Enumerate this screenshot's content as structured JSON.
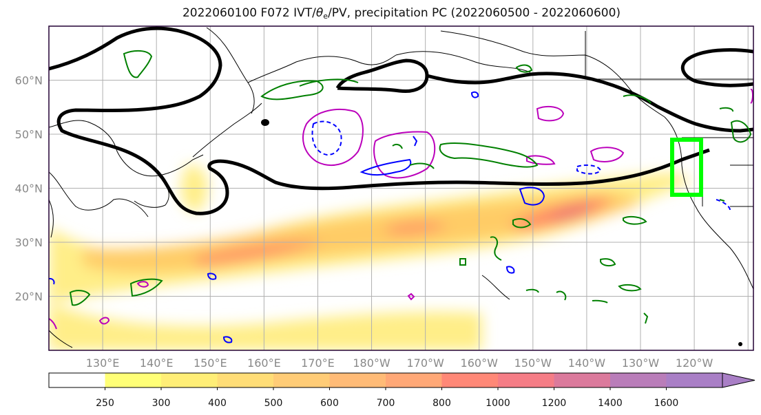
{
  "title": {
    "prefix": "2022060100 F072 IVT/",
    "theta": "θ",
    "theta_sub": "e",
    "suffix": "/PV, precipitation PC (2022060500 - 2022060600)"
  },
  "axes": {
    "lon_labels": [
      "130°E",
      "140°E",
      "150°E",
      "160°E",
      "170°E",
      "180°W",
      "170°W",
      "160°W",
      "150°W",
      "140°W",
      "130°W",
      "120°W"
    ],
    "lat_labels": [
      "60°N",
      "50°N",
      "40°N",
      "30°N",
      "20°N"
    ],
    "lon_range": [
      120,
      251
    ],
    "lat_range": [
      10,
      70
    ]
  },
  "colorbar": {
    "ticks": [
      "250",
      "300",
      "400",
      "500",
      "600",
      "700",
      "800",
      "1000",
      "1200",
      "1400",
      "1600"
    ],
    "colors": [
      "#ffffff",
      "#ffff77",
      "#ffee77",
      "#ffdd77",
      "#ffcc77",
      "#ffbb77",
      "#ffa877",
      "#ff8877",
      "#f57d86",
      "#db7a9c",
      "#b97db9",
      "#a97fc6"
    ]
  },
  "colors": {
    "theta_e": "#000000",
    "precip": "#008000",
    "pv": "#0000ff",
    "pv2": "#bb00bb",
    "box": "#00ff00"
  }
}
